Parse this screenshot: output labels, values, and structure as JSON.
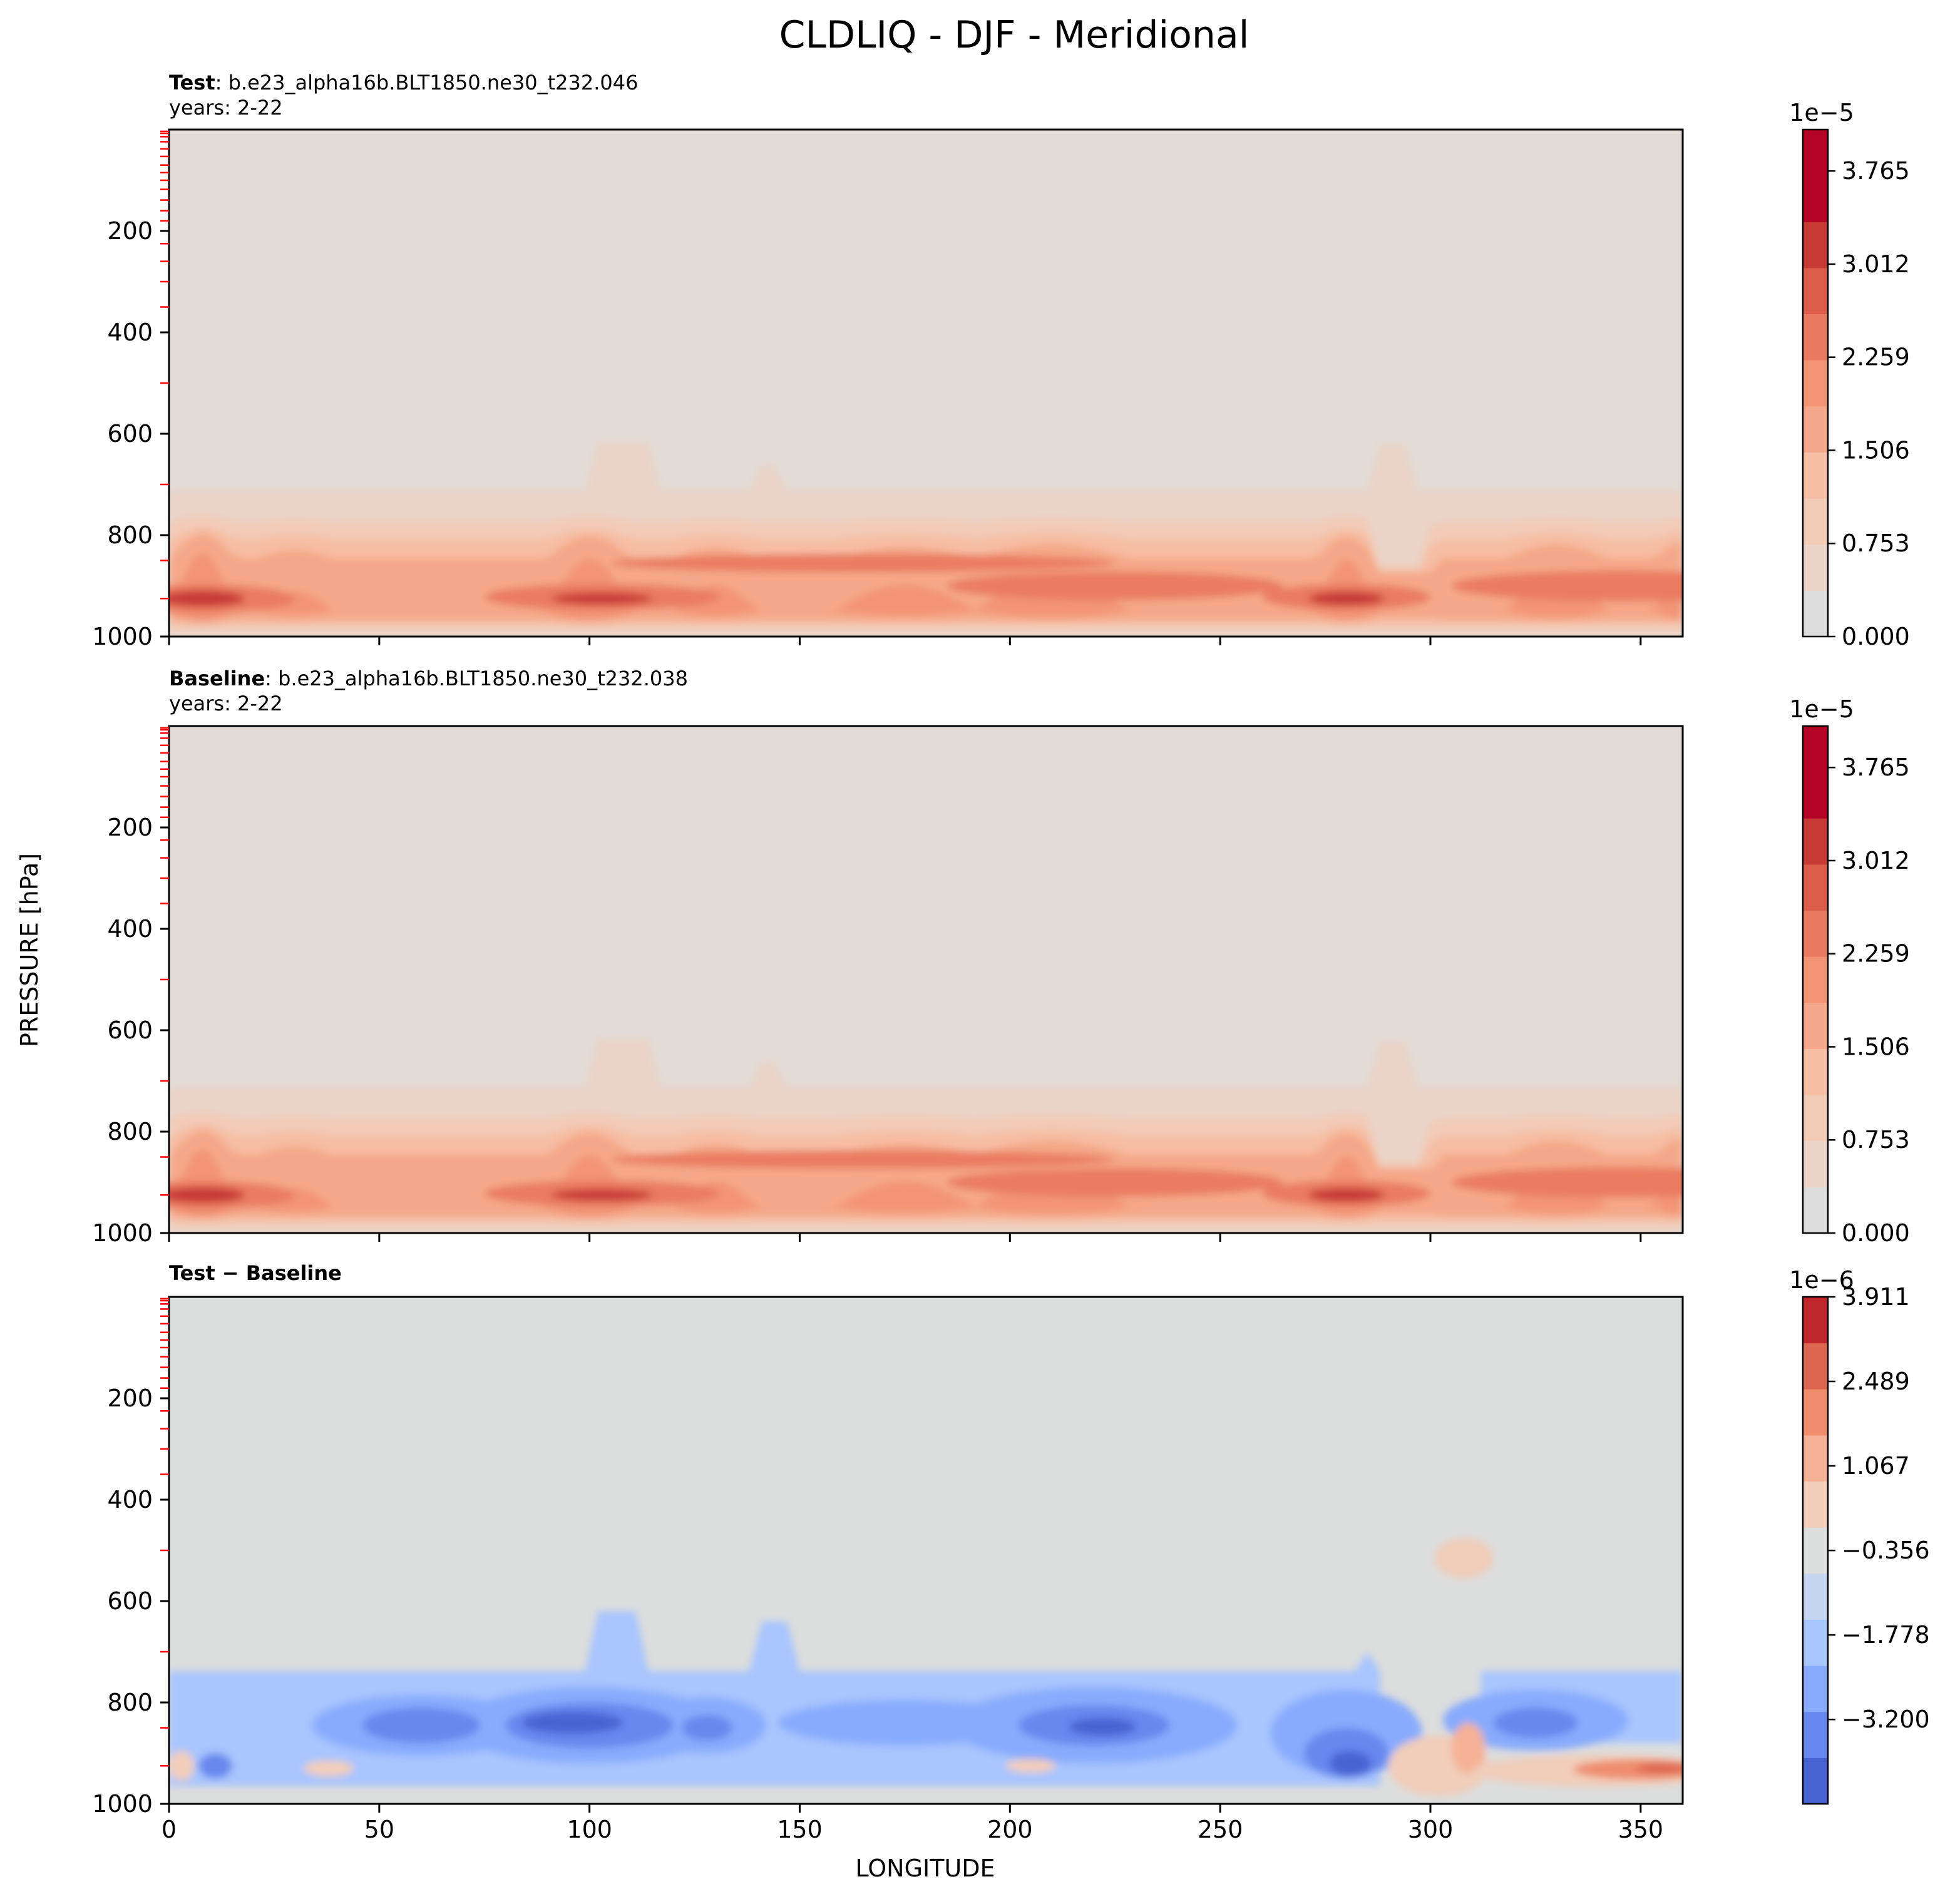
{
  "figure": {
    "title": "CLDLIQ - DJF - Meridional",
    "ylabel": "PRESSURE [hPa]",
    "xlabel": "LONGITUDE"
  },
  "chart_data": [
    {
      "type": "heatmap",
      "panel": "test",
      "title_bold": "Test",
      "title_rest": ": b.e23_alpha16b.BLT1850.ne30_t232.046",
      "subtitle": "years: 2-22",
      "xlim": [
        0,
        360
      ],
      "ylim": [
        1000,
        0
      ],
      "yticks": [
        "200",
        "400",
        "600",
        "800",
        "1000"
      ],
      "colorbar": {
        "exponent": "1e−5",
        "ticks": [
          "0.000",
          "0.753",
          "1.506",
          "2.259",
          "3.012",
          "3.765"
        ],
        "tick_values": [
          0,
          0.753,
          1.506,
          2.259,
          3.012,
          3.765
        ],
        "vmax": 4.1,
        "colors": [
          "#dddcdc",
          "#ead4c8",
          "#f2cbb7",
          "#f6bea4",
          "#f5a889",
          "#f39475",
          "#ea7b60",
          "#dc5d4a",
          "#c83b35",
          "#b40426",
          "#b40426"
        ]
      }
    },
    {
      "type": "heatmap",
      "panel": "baseline",
      "title_bold": "Baseline",
      "title_rest": ": b.e23_alpha16b.BLT1850.ne30_t232.038",
      "subtitle": "years: 2-22",
      "xlim": [
        0,
        360
      ],
      "ylim": [
        1000,
        0
      ],
      "yticks": [
        "200",
        "400",
        "600",
        "800",
        "1000"
      ],
      "colorbar": {
        "exponent": "1e−5",
        "ticks": [
          "0.000",
          "0.753",
          "1.506",
          "2.259",
          "3.012",
          "3.765"
        ],
        "tick_values": [
          0,
          0.753,
          1.506,
          2.259,
          3.012,
          3.765
        ],
        "vmax": 4.1,
        "colors": [
          "#dddcdc",
          "#ead4c8",
          "#f2cbb7",
          "#f6bea4",
          "#f5a889",
          "#f39475",
          "#ea7b60",
          "#dc5d4a",
          "#c83b35",
          "#b40426",
          "#b40426"
        ]
      }
    },
    {
      "type": "heatmap",
      "panel": "difference",
      "title_bold": "Test − Baseline",
      "title_rest": "",
      "subtitle": "",
      "xlim": [
        0,
        360
      ],
      "ylim": [
        1000,
        0
      ],
      "xticks": [
        "0",
        "50",
        "100",
        "150",
        "200",
        "250",
        "300",
        "350"
      ],
      "xtick_values": [
        0,
        50,
        100,
        150,
        200,
        250,
        300,
        350
      ],
      "yticks": [
        "200",
        "400",
        "600",
        "800",
        "1000"
      ],
      "colorbar": {
        "exponent": "1e−6",
        "ticks": [
          "−3.200",
          "−1.778",
          "−0.356",
          "1.067",
          "2.489",
          "3.911"
        ],
        "tick_values": [
          -3.2,
          -1.778,
          -0.356,
          1.067,
          2.489,
          3.911
        ],
        "vmin": -4.62,
        "vmax": 3.911,
        "colors": [
          "#4a63d3",
          "#6788ee",
          "#88abfd",
          "#a8c5fe",
          "#c5d5f0",
          "#dcdddd",
          "#f1cdba",
          "#f4b195",
          "#ef8d6d",
          "#dc6650",
          "#c0282e"
        ]
      }
    }
  ]
}
